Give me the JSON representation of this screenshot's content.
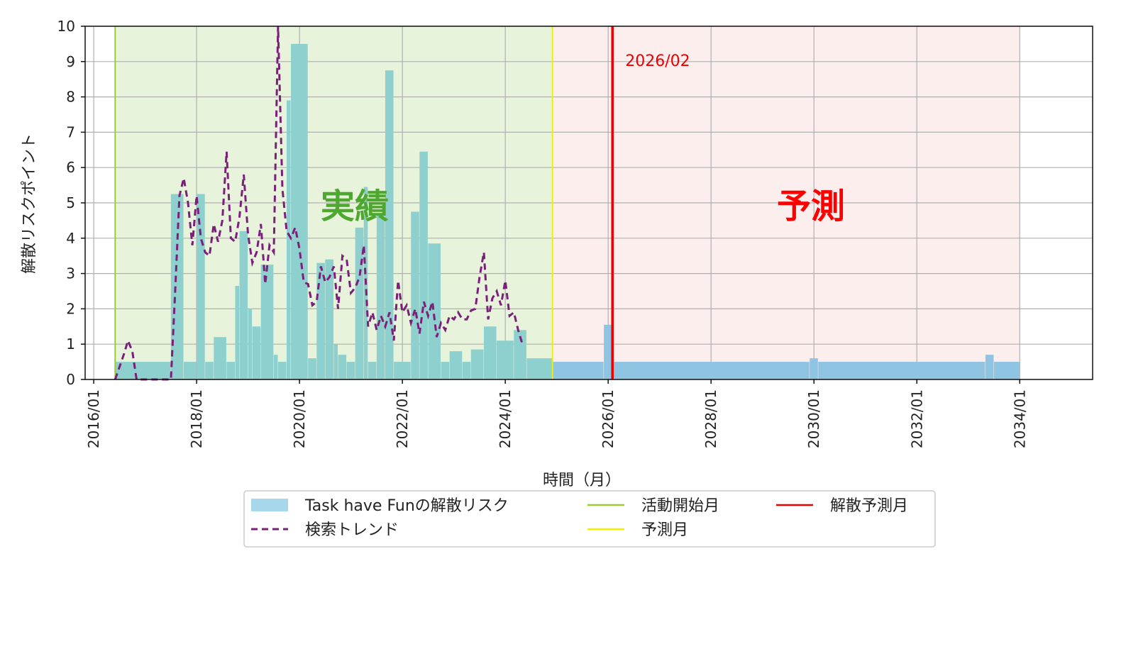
{
  "chart_data": {
    "type": "bar",
    "xlabel": "時間（月）",
    "ylabel": "解散リスクポイント",
    "ylim": [
      0,
      10
    ],
    "yticks": [
      "0",
      "1",
      "2",
      "3",
      "4",
      "5",
      "6",
      "7",
      "8",
      "9",
      "10"
    ],
    "xticks": [
      "2016/01",
      "2018/01",
      "2020/01",
      "2022/01",
      "2024/01",
      "2026/01",
      "2028/01",
      "2030/01",
      "2032/01",
      "2034/01"
    ],
    "x_range": [
      "2015/11",
      "2035/06"
    ],
    "grid": true,
    "legend_position": "bottom-center",
    "regions": [
      {
        "label": "実績",
        "start": "2016/06",
        "end": "2024/12",
        "color": "#e8f3dc",
        "label_color": "#4ea72e"
      },
      {
        "label": "予測",
        "start": "2024/12",
        "end": "2034/01",
        "color": "#fdeeee",
        "label_color": "#ff0000"
      }
    ],
    "vlines": [
      {
        "name": "活動開始月",
        "x": "2016/06",
        "color": "#9acd32"
      },
      {
        "name": "予測月",
        "x": "2024/12",
        "color": "#f0f000"
      },
      {
        "name": "解散予測月",
        "x": "2026/02",
        "color": "#ee0000",
        "label": "2026/02"
      }
    ],
    "series": [
      {
        "name": "Task have Funの解散リスク",
        "kind": "bar",
        "actual_color": "#8ed0cd",
        "forecast_color": "#8fc4e3",
        "segments": [
          [
            "2016/06",
            "2017/07",
            0.5
          ],
          [
            "2017/07",
            "2017/10",
            5.25
          ],
          [
            "2017/10",
            "2018/01",
            0.5
          ],
          [
            "2018/01",
            "2018/03",
            5.25
          ],
          [
            "2018/03",
            "2018/05",
            0.5
          ],
          [
            "2018/05",
            "2018/08",
            1.2
          ],
          [
            "2018/08",
            "2018/10",
            0.5
          ],
          [
            "2018/10",
            "2018/11",
            2.65
          ],
          [
            "2018/11",
            "2019/01",
            4.2
          ],
          [
            "2019/01",
            "2019/02",
            2.0
          ],
          [
            "2019/02",
            "2019/04",
            1.5
          ],
          [
            "2019/04",
            "2019/07",
            3.25
          ],
          [
            "2019/07",
            "2019/08",
            0.7
          ],
          [
            "2019/08",
            "2019/10",
            0.5
          ],
          [
            "2019/10",
            "2019/11",
            7.9
          ],
          [
            "2019/11",
            "2020/03",
            9.5
          ],
          [
            "2020/03",
            "2020/05",
            0.6
          ],
          [
            "2020/05",
            "2020/07",
            3.3
          ],
          [
            "2020/07",
            "2020/09",
            3.4
          ],
          [
            "2020/09",
            "2020/10",
            1.0
          ],
          [
            "2020/10",
            "2020/12",
            0.7
          ],
          [
            "2020/12",
            "2021/02",
            0.5
          ],
          [
            "2021/02",
            "2021/04",
            4.3
          ],
          [
            "2021/04",
            "2021/05",
            5.45
          ],
          [
            "2021/05",
            "2021/07",
            0.5
          ],
          [
            "2021/07",
            "2021/09",
            4.7
          ],
          [
            "2021/09",
            "2021/11",
            8.75
          ],
          [
            "2021/11",
            "2022/03",
            0.5
          ],
          [
            "2022/03",
            "2022/05",
            4.75
          ],
          [
            "2022/05",
            "2022/07",
            6.45
          ],
          [
            "2022/07",
            "2022/10",
            3.85
          ],
          [
            "2022/10",
            "2022/12",
            0.5
          ],
          [
            "2022/12",
            "2023/03",
            0.8
          ],
          [
            "2023/03",
            "2023/05",
            0.5
          ],
          [
            "2023/05",
            "2023/08",
            0.85
          ],
          [
            "2023/08",
            "2023/11",
            1.5
          ],
          [
            "2023/11",
            "2024/03",
            1.1
          ],
          [
            "2024/03",
            "2024/06",
            1.4
          ],
          [
            "2024/06",
            "2024/12",
            0.6
          ],
          [
            "2024/12",
            "2025/12",
            0.5
          ],
          [
            "2025/12",
            "2026/02",
            1.55
          ],
          [
            "2026/02",
            "2029/12",
            0.5
          ],
          [
            "2029/12",
            "2030/02",
            0.6
          ],
          [
            "2030/02",
            "2033/05",
            0.5
          ],
          [
            "2033/05",
            "2033/07",
            0.7
          ],
          [
            "2033/07",
            "2034/01",
            0.5
          ]
        ]
      },
      {
        "name": "検索トレンド",
        "kind": "line",
        "color": "#7a1f7a",
        "points": [
          [
            "2016/06",
            0.0
          ],
          [
            "2016/08",
            0.7
          ],
          [
            "2016/09",
            1.1
          ],
          [
            "2016/10",
            0.8
          ],
          [
            "2016/11",
            0.0
          ],
          [
            "2017/07",
            0.0
          ],
          [
            "2017/08",
            2.5
          ],
          [
            "2017/09",
            5.2
          ],
          [
            "2017/10",
            5.7
          ],
          [
            "2017/11",
            5.0
          ],
          [
            "2017/12",
            3.8
          ],
          [
            "2018/01",
            5.2
          ],
          [
            "2018/02",
            4.0
          ],
          [
            "2018/03",
            3.6
          ],
          [
            "2018/04",
            3.5
          ],
          [
            "2018/05",
            4.4
          ],
          [
            "2018/06",
            3.9
          ],
          [
            "2018/07",
            4.5
          ],
          [
            "2018/08",
            6.45
          ],
          [
            "2018/09",
            4.0
          ],
          [
            "2018/10",
            3.9
          ],
          [
            "2018/11",
            4.6
          ],
          [
            "2018/12",
            5.8
          ],
          [
            "2019/01",
            4.1
          ],
          [
            "2019/02",
            3.3
          ],
          [
            "2019/03",
            3.6
          ],
          [
            "2019/04",
            4.4
          ],
          [
            "2019/05",
            2.7
          ],
          [
            "2019/06",
            3.8
          ],
          [
            "2019/07",
            3.6
          ],
          [
            "2019/08",
            10.0
          ],
          [
            "2019/09",
            5.4
          ],
          [
            "2019/10",
            4.2
          ],
          [
            "2019/11",
            4.0
          ],
          [
            "2019/12",
            4.3
          ],
          [
            "2020/01",
            3.7
          ],
          [
            "2020/02",
            2.75
          ],
          [
            "2020/03",
            2.7
          ],
          [
            "2020/04",
            2.1
          ],
          [
            "2020/05",
            2.2
          ],
          [
            "2020/06",
            3.2
          ],
          [
            "2020/07",
            2.75
          ],
          [
            "2020/08",
            2.9
          ],
          [
            "2020/09",
            3.2
          ],
          [
            "2020/10",
            2.0
          ],
          [
            "2020/11",
            3.5
          ],
          [
            "2020/12",
            3.4
          ],
          [
            "2021/01",
            2.45
          ],
          [
            "2021/02",
            2.6
          ],
          [
            "2021/03",
            2.9
          ],
          [
            "2021/04",
            3.8
          ],
          [
            "2021/05",
            1.5
          ],
          [
            "2021/06",
            1.9
          ],
          [
            "2021/07",
            1.4
          ],
          [
            "2021/08",
            1.8
          ],
          [
            "2021/09",
            1.5
          ],
          [
            "2021/10",
            1.9
          ],
          [
            "2021/11",
            1.1
          ],
          [
            "2021/12",
            2.8
          ],
          [
            "2021/13",
            1.9
          ],
          [
            "2022/02",
            2.1
          ],
          [
            "2022/03",
            1.6
          ],
          [
            "2022/04",
            2.0
          ],
          [
            "2022/05",
            1.3
          ],
          [
            "2022/06",
            2.2
          ],
          [
            "2022/07",
            1.8
          ],
          [
            "2022/08",
            2.2
          ],
          [
            "2022/09",
            1.2
          ],
          [
            "2022/10",
            1.6
          ],
          [
            "2022/11",
            1.4
          ],
          [
            "2022/12",
            1.8
          ],
          [
            "2023/01",
            1.7
          ],
          [
            "2023/02",
            1.9
          ],
          [
            "2023/03",
            1.7
          ],
          [
            "2023/04",
            1.7
          ],
          [
            "2023/05",
            1.95
          ],
          [
            "2023/06",
            2.0
          ],
          [
            "2023/07",
            2.9
          ],
          [
            "2023/08",
            3.6
          ],
          [
            "2023/09",
            1.7
          ],
          [
            "2023/10",
            2.3
          ],
          [
            "2023/11",
            2.5
          ],
          [
            "2023/12",
            2.1
          ],
          [
            "2024/01",
            2.8
          ],
          [
            "2024/02",
            1.8
          ],
          [
            "2024/03",
            1.9
          ],
          [
            "2024/04",
            1.4
          ],
          [
            "2024/05",
            1.0
          ]
        ]
      }
    ]
  },
  "legend": {
    "items": [
      {
        "label": "Task have Funの解散リスク",
        "kind": "patch",
        "color": "#a7d7ea"
      },
      {
        "label": "活動開始月",
        "kind": "line",
        "color": "#9acd32"
      },
      {
        "label": "解散予測月",
        "kind": "line",
        "color": "#ee0000"
      },
      {
        "label": "検索トレンド",
        "kind": "dashed",
        "color": "#7a1f7a"
      },
      {
        "label": "予測月",
        "kind": "line",
        "color": "#f0f000"
      }
    ]
  }
}
